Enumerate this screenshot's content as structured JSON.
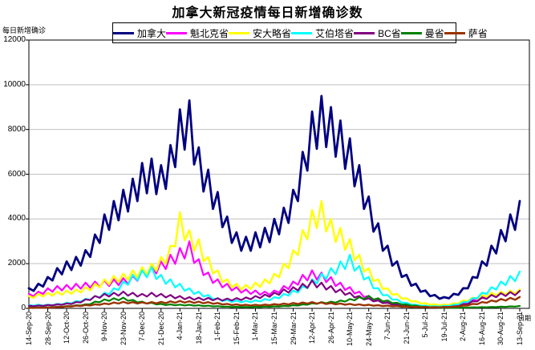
{
  "colors": {
    "title": "#000000",
    "axis": "#000000",
    "grid": "#C0C0C0",
    "background": "#FFFFFF",
    "legend_border": "#000000"
  },
  "chart_data": {
    "type": "line",
    "title": "加拿大新冠疫情每日新增确诊数",
    "ylabel": "每日新增确诊",
    "xlabel": "日期",
    "ylim": [
      0,
      12000
    ],
    "ytick_interval": 2000,
    "ytick_labels": [
      "0",
      "2000",
      "4000",
      "6000",
      "8000",
      "10000",
      "12000"
    ],
    "grid": "horizontal",
    "legend_position": "top",
    "x_range": [
      "14-Sep-20",
      "13-Sep-21"
    ],
    "xtick_interval_days": 14,
    "xtick_labels": [
      "14-Sep-20",
      "28-Sep-20",
      "12-Oct-20",
      "26-Oct-20",
      "9-Nov-20",
      "23-Nov-20",
      "7-Dec-20",
      "21-Dec-20",
      "4-Jan-21",
      "18-Jan-21",
      "1-Feb-21",
      "15-Feb-21",
      "1-Mar-21",
      "15-Mar-21",
      "29-Mar-21",
      "12-Apr-21",
      "26-Apr-21",
      "10-May-21",
      "24-May-21",
      "7-Jun-21",
      "21-Jun-21",
      "5-Jul-21",
      "19-Jul-21",
      "2-Aug-21",
      "16-Aug-21",
      "30-Aug-21",
      "13-Sep-21"
    ],
    "sample_interval_days": 7,
    "weekend_dip_ratio": 0.78,
    "series": [
      {
        "name": "加拿大",
        "color": "#000080",
        "width": 2.8,
        "weekly_values": [
          900,
          1100,
          1400,
          1800,
          2100,
          2300,
          2600,
          3300,
          4200,
          4800,
          5300,
          5800,
          6500,
          6700,
          6400,
          7300,
          8900,
          9300,
          7200,
          6200,
          5200,
          4100,
          3400,
          3200,
          3400,
          3600,
          4000,
          4500,
          5300,
          7000,
          8800,
          9500,
          9000,
          8400,
          7600,
          6400,
          5000,
          3800,
          2800,
          2100,
          1500,
          1100,
          800,
          600,
          500,
          650,
          900,
          1400,
          2100,
          2800,
          3500,
          4200,
          4800
        ]
      },
      {
        "name": "魁北克省",
        "color": "#FF00FF",
        "width": 2.2,
        "weekly_values": [
          650,
          750,
          900,
          1000,
          1050,
          1100,
          1150,
          1200,
          1250,
          1300,
          1350,
          1450,
          1700,
          1900,
          2100,
          2400,
          2700,
          3000,
          2200,
          1600,
          1300,
          1100,
          950,
          850,
          800,
          750,
          800,
          1000,
          1200,
          1500,
          1700,
          1600,
          1400,
          1150,
          950,
          750,
          550,
          420,
          300,
          220,
          160,
          120,
          90,
          80,
          90,
          130,
          250,
          400,
          550,
          650,
          700,
          750,
          800
        ]
      },
      {
        "name": "安大略省",
        "color": "#FFFF00",
        "width": 2.4,
        "weekly_values": [
          550,
          650,
          700,
          750,
          800,
          850,
          950,
          1100,
          1300,
          1450,
          1550,
          1700,
          1850,
          2000,
          2300,
          2800,
          4300,
          3500,
          3100,
          2300,
          1700,
          1300,
          1100,
          1050,
          1150,
          1300,
          1550,
          2000,
          2600,
          3500,
          4400,
          4800,
          4000,
          3600,
          3100,
          2400,
          1800,
          1300,
          900,
          650,
          450,
          330,
          230,
          180,
          170,
          220,
          350,
          480,
          600,
          700,
          750,
          800,
          850
        ]
      },
      {
        "name": "艾伯塔省",
        "color": "#00FFFF",
        "width": 2.2,
        "weekly_values": [
          150,
          160,
          170,
          200,
          250,
          330,
          430,
          550,
          700,
          900,
          1200,
          1500,
          1700,
          1850,
          1500,
          1300,
          1100,
          900,
          750,
          600,
          450,
          380,
          350,
          340,
          360,
          420,
          500,
          650,
          800,
          1000,
          1300,
          1550,
          1800,
          2100,
          2400,
          1900,
          1400,
          900,
          600,
          400,
          250,
          170,
          120,
          100,
          110,
          160,
          280,
          450,
          700,
          950,
          1200,
          1450,
          1650
        ]
      },
      {
        "name": "BC省",
        "color": "#800080",
        "width": 2.2,
        "weekly_values": [
          120,
          130,
          150,
          180,
          220,
          280,
          400,
          550,
          650,
          700,
          750,
          700,
          650,
          700,
          650,
          600,
          550,
          500,
          480,
          470,
          450,
          440,
          460,
          490,
          550,
          620,
          700,
          850,
          950,
          1100,
          1250,
          1150,
          1000,
          850,
          700,
          550,
          450,
          350,
          250,
          180,
          130,
          90,
          60,
          50,
          60,
          90,
          180,
          320,
          480,
          600,
          680,
          730,
          780
        ]
      },
      {
        "name": "曼省",
        "color": "#008000",
        "width": 2.2,
        "weekly_values": [
          35,
          40,
          50,
          70,
          100,
          140,
          180,
          300,
          400,
          450,
          480,
          380,
          300,
          250,
          200,
          180,
          170,
          160,
          140,
          120,
          100,
          80,
          70,
          65,
          70,
          80,
          90,
          110,
          140,
          180,
          230,
          280,
          300,
          350,
          420,
          500,
          560,
          450,
          350,
          250,
          180,
          120,
          80,
          50,
          35,
          30,
          35,
          45,
          55,
          65,
          75,
          90,
          110
        ]
      },
      {
        "name": "萨省",
        "color": "#993300",
        "width": 2.4,
        "weekly_values": [
          25,
          30,
          40,
          60,
          90,
          120,
          150,
          180,
          220,
          260,
          290,
          280,
          270,
          280,
          290,
          310,
          330,
          320,
          300,
          280,
          240,
          200,
          180,
          160,
          160,
          170,
          190,
          210,
          240,
          260,
          280,
          260,
          240,
          220,
          200,
          180,
          160,
          140,
          120,
          100,
          80,
          70,
          60,
          55,
          60,
          80,
          130,
          200,
          280,
          350,
          420,
          470,
          510
        ]
      }
    ]
  }
}
